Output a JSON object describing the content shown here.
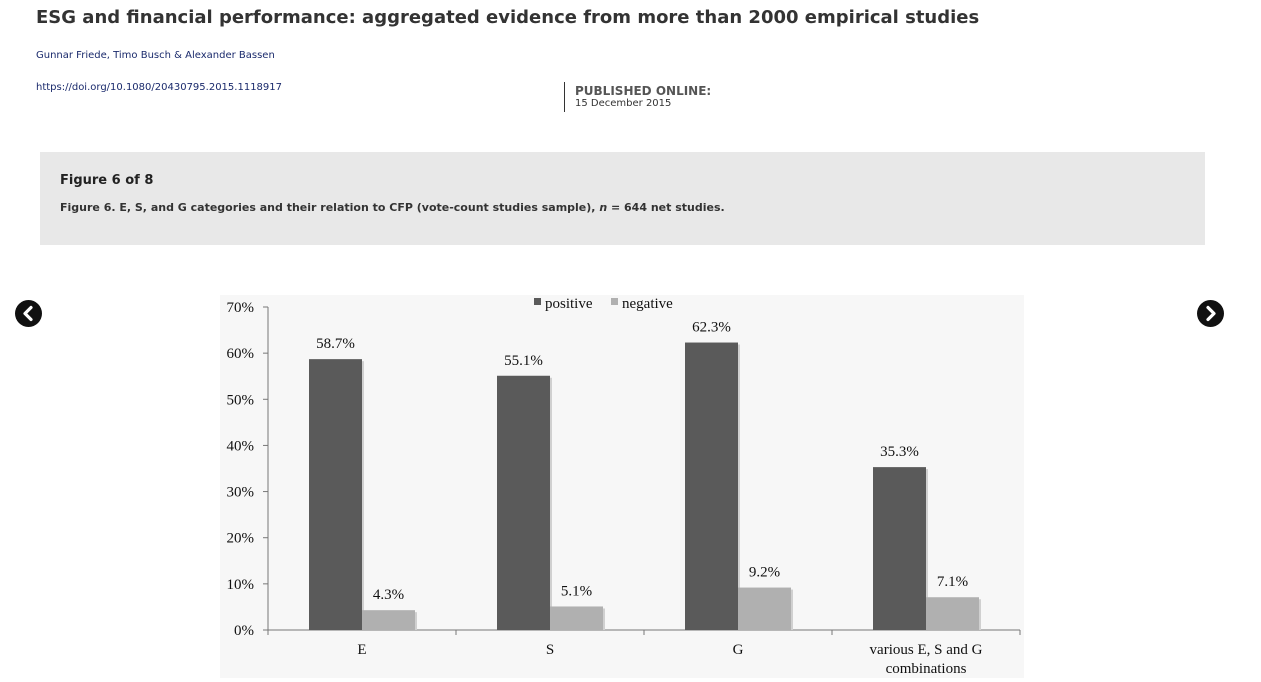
{
  "article": {
    "title": "ESG and financial performance: aggregated evidence from more than 2000 empirical studies",
    "authors": "Gunnar Friede, Timo Busch & Alexander Bassen",
    "doi": "https://doi.org/10.1080/20430795.2015.1118917",
    "published_label": "PUBLISHED ONLINE:",
    "published_date": "15 December 2015"
  },
  "figure": {
    "number_label": "Figure 6 of 8",
    "caption_prefix": "Figure 6. E, S, and G categories and their relation to CFP (vote-count studies sample), ",
    "caption_n": "n",
    "caption_suffix": " = 644 net studies."
  },
  "nav": {
    "prev_icon": "chevron-left-circle-icon",
    "next_icon": "chevron-right-circle-icon"
  },
  "chart_data": {
    "type": "bar",
    "categories": [
      "E",
      "S",
      "G",
      "various E, S and G combinations"
    ],
    "category_lines": [
      [
        "E"
      ],
      [
        "S"
      ],
      [
        "G"
      ],
      [
        "various E, S and G",
        "combinations"
      ]
    ],
    "series": [
      {
        "name": "positive",
        "values": [
          58.7,
          55.1,
          62.3,
          35.3
        ],
        "labels": [
          "58.7%",
          "55.1%",
          "62.3%",
          "35.3%"
        ],
        "color": "#5a5a5a"
      },
      {
        "name": "negative",
        "values": [
          4.3,
          5.1,
          9.2,
          7.1
        ],
        "labels": [
          "4.3%",
          "5.1%",
          "9.2%",
          "7.1%"
        ],
        "color": "#b0b0b0"
      }
    ],
    "ylim": [
      0,
      70
    ],
    "yticks": [
      0,
      10,
      20,
      30,
      40,
      50,
      60,
      70
    ],
    "ytick_labels": [
      "0%",
      "10%",
      "20%",
      "30%",
      "40%",
      "50%",
      "60%",
      "70%"
    ],
    "legend_position": "top-center",
    "grid": false
  }
}
